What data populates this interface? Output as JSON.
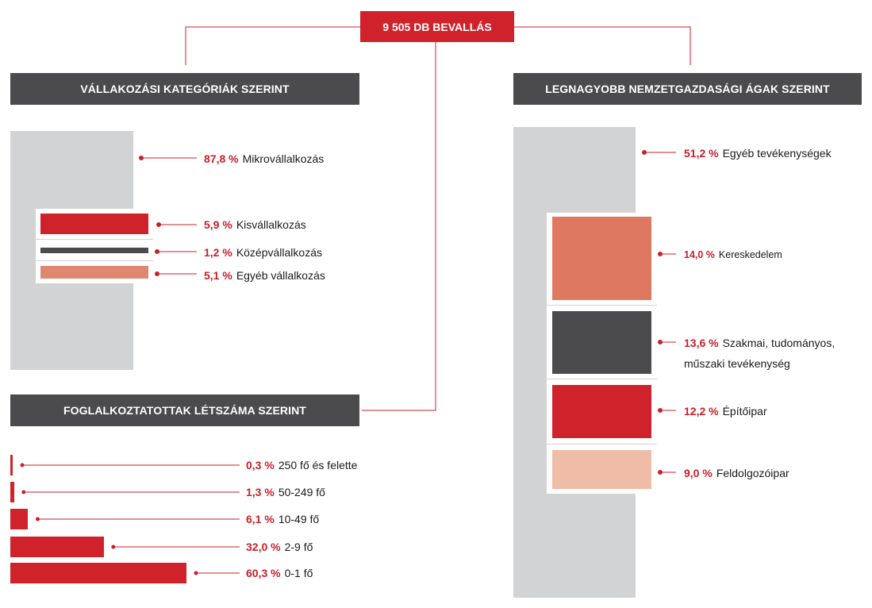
{
  "top": {
    "label": "9 505 DB BEVALLÁS"
  },
  "sections": {
    "business": {
      "title": "VÁLLAKOZÁSI KATEGÓRIÁK SZERINT"
    },
    "employees": {
      "title": "FOGLALKOZTATOTTAK LÉTSZÁMA SZERINT"
    },
    "sectors": {
      "title": "LEGNAGYOBB NEMZETGAZDASÁGI ÁGAK SZERINT"
    }
  },
  "colors": {
    "red": "#d0222b",
    "dark": "#4b4b4d",
    "salmon": "#e0876f",
    "coral": "#df7860",
    "peach": "#efbca8",
    "grey": "#d2d3d5",
    "pct": "#c8202a"
  },
  "chart_data": [
    {
      "type": "bar",
      "title": "VÁLLAKOZÁSI KATEGÓRIÁK SZERINT",
      "unit": "%",
      "categories": [
        "Mikrovállalkozás",
        "Kisvállalkozás",
        "Középvállalkozás",
        "Egyéb vállalkozás"
      ],
      "values": [
        87.8,
        5.9,
        1.2,
        5.1
      ],
      "labels": [
        "87,8 %",
        "5,9 %",
        "1,2 %",
        "5,1 %"
      ]
    },
    {
      "type": "bar",
      "title": "FOGLALKOZTATOTTAK LÉTSZÁMA SZERINT",
      "unit": "%",
      "categories": [
        "250 fő és felette",
        "50-249 fő",
        "10-49 fő",
        "2-9 fő",
        "0-1 fő"
      ],
      "values": [
        0.3,
        1.3,
        6.1,
        32.0,
        60.3
      ],
      "labels": [
        "0,3 %",
        "1,3 %",
        "6,1 %",
        "32,0 %",
        "60,3 %"
      ]
    },
    {
      "type": "bar",
      "title": "LEGNAGYOBB NEMZETGAZDASÁGI ÁGAK SZERINT",
      "unit": "%",
      "categories": [
        "Egyéb tevékenységek",
        "Kereskedelem",
        "Szakmai, tudományos,",
        "Építőipar",
        "Feldolgozóipar"
      ],
      "category_line2": [
        "",
        "",
        "műszaki tevékenység",
        "",
        ""
      ],
      "values": [
        51.2,
        14.0,
        13.6,
        12.2,
        9.0
      ],
      "labels": [
        "51,2 %",
        "14,0 %",
        "13,6 %",
        "12,2 %",
        "9,0 %"
      ]
    }
  ]
}
